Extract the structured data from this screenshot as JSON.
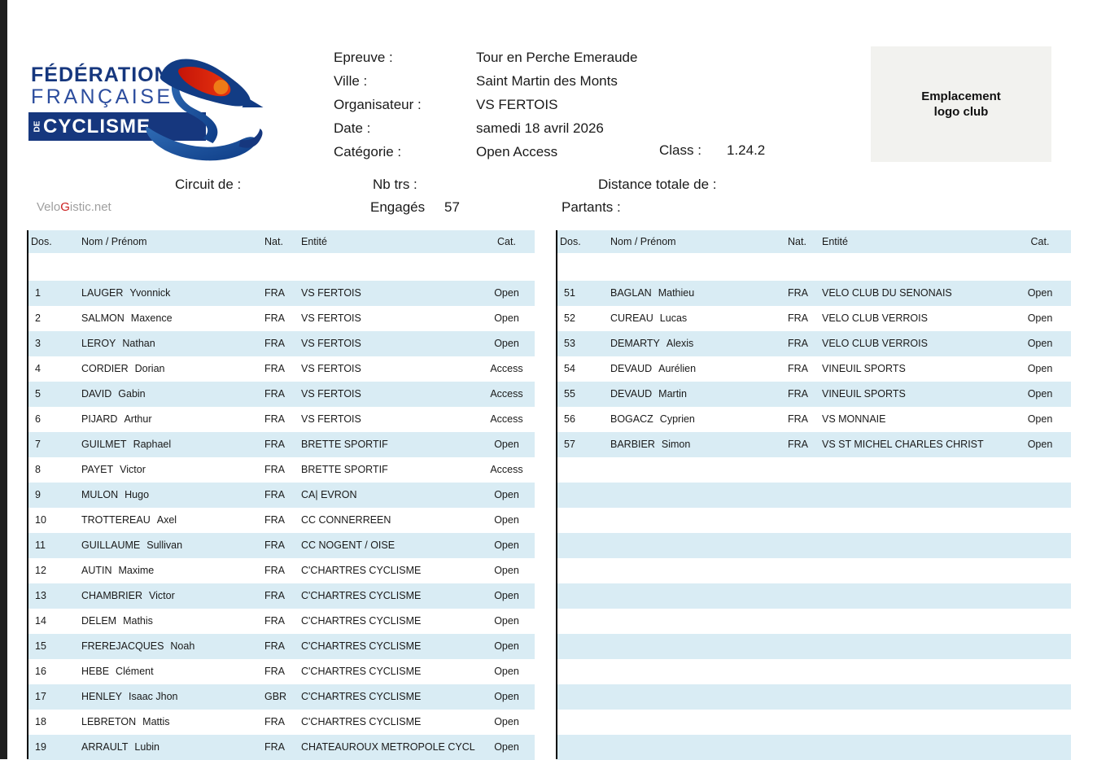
{
  "logo": {
    "line1": "FÉDÉRATION",
    "line2": "FRANÇAISE",
    "line3_small": "DE",
    "line3": "CYCLISME"
  },
  "event": {
    "labels": {
      "epreuve": "Epreuve :",
      "ville": "Ville :",
      "organisateur": "Organisateur :",
      "date": "Date :",
      "categorie": "Catégorie :",
      "class": "Class :"
    },
    "values": {
      "epreuve": "Tour en Perche Emeraude",
      "ville": "Saint Martin des Monts",
      "organisateur": "VS FERTOIS",
      "date": "samedi 18 avril 2026",
      "categorie": "Open Access",
      "class": "1.24.2"
    }
  },
  "logo_placeholder": {
    "line1": "Emplacement",
    "line2": "logo club"
  },
  "meta": {
    "circuit_label": "Circuit de :",
    "nbtrs_label": "Nb trs :",
    "distance_label": "Distance totale de :",
    "engages_label": "Engagés",
    "engages_value": "57",
    "partants_label": "Partants :",
    "watermark": {
      "prefix": "Velo",
      "g": "G",
      "suffix": "istic.net"
    }
  },
  "table_headers": [
    "Dos.",
    "Nom / Prénom",
    "Nat.",
    "Entité",
    "Cat."
  ],
  "left_riders": [
    {
      "dos": "1",
      "nom": "LAUGER",
      "prenom": "Yvonnick",
      "nat": "FRA",
      "entity": "VS FERTOIS",
      "cat": "Open"
    },
    {
      "dos": "2",
      "nom": "SALMON",
      "prenom": "Maxence",
      "nat": "FRA",
      "entity": "VS FERTOIS",
      "cat": "Open"
    },
    {
      "dos": "3",
      "nom": "LEROY",
      "prenom": "Nathan",
      "nat": "FRA",
      "entity": "VS FERTOIS",
      "cat": "Open"
    },
    {
      "dos": "4",
      "nom": "CORDIER",
      "prenom": "Dorian",
      "nat": "FRA",
      "entity": "VS FERTOIS",
      "cat": "Access"
    },
    {
      "dos": "5",
      "nom": "DAVID",
      "prenom": "Gabin",
      "nat": "FRA",
      "entity": "VS FERTOIS",
      "cat": "Access"
    },
    {
      "dos": "6",
      "nom": "PIJARD",
      "prenom": "Arthur",
      "nat": "FRA",
      "entity": "VS FERTOIS",
      "cat": "Access"
    },
    {
      "dos": "7",
      "nom": "GUILMET",
      "prenom": "Raphael",
      "nat": "FRA",
      "entity": "BRETTE SPORTIF",
      "cat": "Open"
    },
    {
      "dos": "8",
      "nom": "PAYET",
      "prenom": "Victor",
      "nat": "FRA",
      "entity": "BRETTE SPORTIF",
      "cat": "Access"
    },
    {
      "dos": "9",
      "nom": "MULON",
      "prenom": "Hugo",
      "nat": "FRA",
      "entity": "CA| EVRON",
      "cat": "Open"
    },
    {
      "dos": "10",
      "nom": "TROTTEREAU",
      "prenom": "Axel",
      "nat": "FRA",
      "entity": "CC CONNERREEN",
      "cat": "Open"
    },
    {
      "dos": "11",
      "nom": "GUILLAUME",
      "prenom": "Sullivan",
      "nat": "FRA",
      "entity": "CC NOGENT / OISE",
      "cat": "Open"
    },
    {
      "dos": "12",
      "nom": "AUTIN",
      "prenom": "Maxime",
      "nat": "FRA",
      "entity": "C'CHARTRES CYCLISME",
      "cat": "Open"
    },
    {
      "dos": "13",
      "nom": "CHAMBRIER",
      "prenom": "Victor",
      "nat": "FRA",
      "entity": "C'CHARTRES CYCLISME",
      "cat": "Open"
    },
    {
      "dos": "14",
      "nom": "DELEM",
      "prenom": "Mathis",
      "nat": "FRA",
      "entity": "C'CHARTRES CYCLISME",
      "cat": "Open"
    },
    {
      "dos": "15",
      "nom": "FREREJACQUES",
      "prenom": "Noah",
      "nat": "FRA",
      "entity": "C'CHARTRES CYCLISME",
      "cat": "Open"
    },
    {
      "dos": "16",
      "nom": "HEBE",
      "prenom": "Clément",
      "nat": "FRA",
      "entity": "C'CHARTRES CYCLISME",
      "cat": "Open"
    },
    {
      "dos": "17",
      "nom": "HENLEY",
      "prenom": "Isaac Jhon",
      "nat": "GBR",
      "entity": "C'CHARTRES CYCLISME",
      "cat": "Open"
    },
    {
      "dos": "18",
      "nom": "LEBRETON",
      "prenom": "Mattis",
      "nat": "FRA",
      "entity": "C'CHARTRES CYCLISME",
      "cat": "Open"
    },
    {
      "dos": "19",
      "nom": "ARRAULT",
      "prenom": "Lubin",
      "nat": "FRA",
      "entity": "CHATEAUROUX METROPOLE CYCL",
      "cat": "Open"
    }
  ],
  "right_riders": [
    {
      "dos": "51",
      "nom": "BAGLAN",
      "prenom": "Mathieu",
      "nat": "FRA",
      "entity": "VELO CLUB DU SENONAIS",
      "cat": "Open"
    },
    {
      "dos": "52",
      "nom": "CUREAU",
      "prenom": "Lucas",
      "nat": "FRA",
      "entity": "VELO CLUB VERROIS",
      "cat": "Open"
    },
    {
      "dos": "53",
      "nom": "DEMARTY",
      "prenom": "Alexis",
      "nat": "FRA",
      "entity": "VELO CLUB VERROIS",
      "cat": "Open"
    },
    {
      "dos": "54",
      "nom": "DEVAUD",
      "prenom": "Aurélien",
      "nat": "FRA",
      "entity": "VINEUIL SPORTS",
      "cat": "Open"
    },
    {
      "dos": "55",
      "nom": "DEVAUD",
      "prenom": "Martin",
      "nat": "FRA",
      "entity": "VINEUIL SPORTS",
      "cat": "Open"
    },
    {
      "dos": "56",
      "nom": "BOGACZ",
      "prenom": "Cyprien",
      "nat": "FRA",
      "entity": "VS MONNAIE",
      "cat": "Open"
    },
    {
      "dos": "57",
      "nom": "BARBIER",
      "prenom": "Simon",
      "nat": "FRA",
      "entity": "VS ST MICHEL CHARLES CHRIST",
      "cat": "Open"
    }
  ],
  "right_table_empty_rows": 12,
  "colors": {
    "row_stripe": "#d9ecf4",
    "logo_navy": "#16377e",
    "logo_blue": "#2c4d9e",
    "logo_red": "#d6281e",
    "logo_orange": "#ef8418",
    "watermark_gray": "#9f9f9f",
    "watermark_red": "#cc2020"
  }
}
